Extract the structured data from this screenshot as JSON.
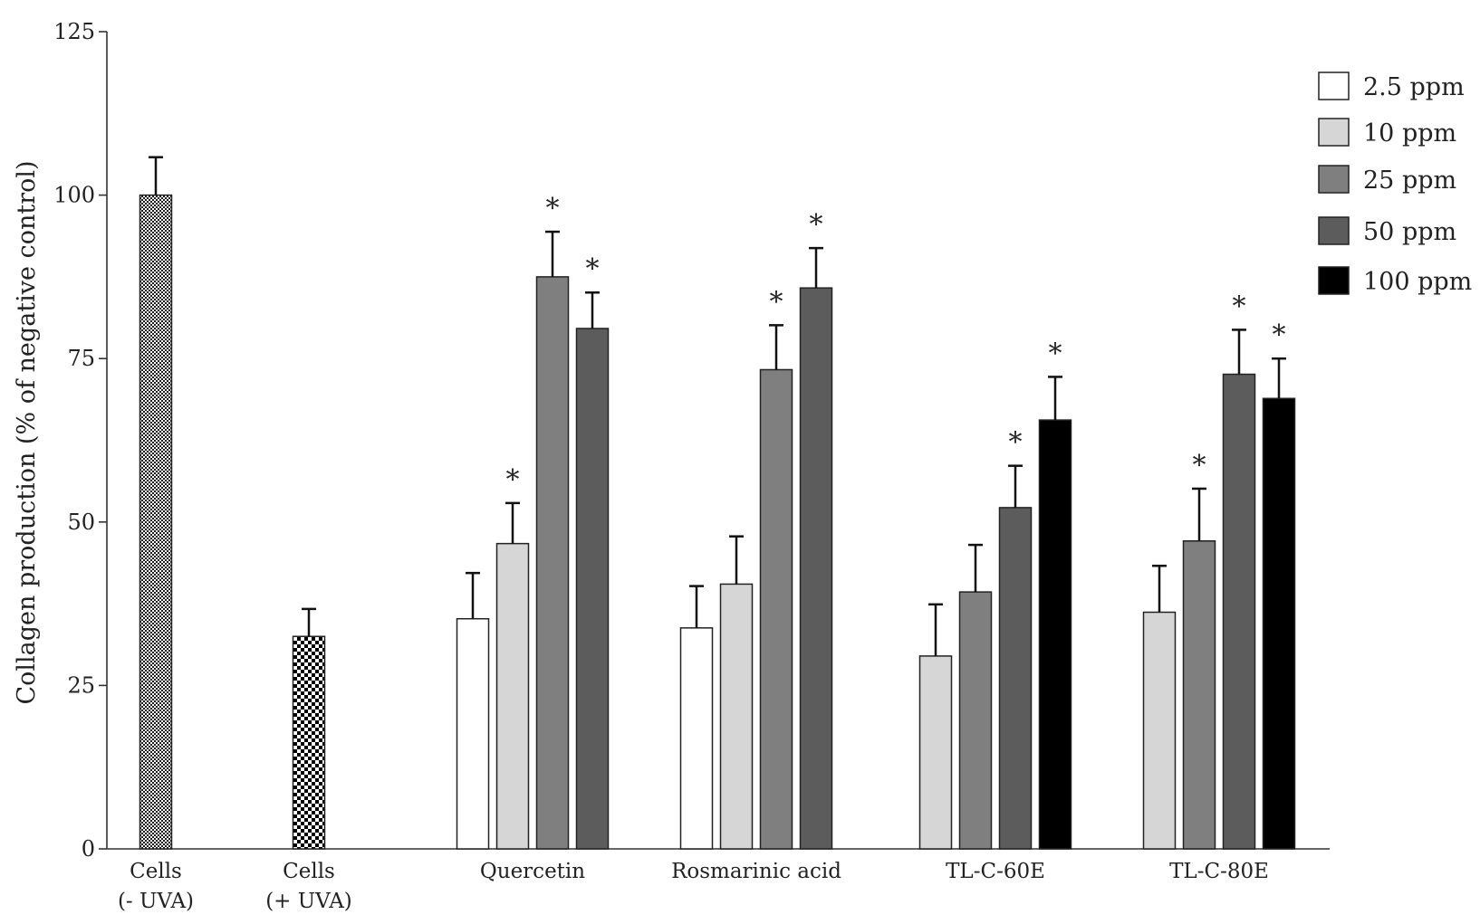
{
  "chart_data": {
    "type": "bar",
    "title": "",
    "xlabel": "",
    "ylabel": "Collagen production (% of negative control)",
    "ylim": [
      0,
      125
    ],
    "yticks": [
      0,
      25,
      50,
      75,
      100,
      125
    ],
    "grid": false,
    "legend_position": "top-right",
    "legend": [
      {
        "label": "2.5 ppm",
        "color": "#ffffff"
      },
      {
        "label": "10 ppm",
        "color": "#d6d6d6"
      },
      {
        "label": "25 ppm",
        "color": "#7f7f7f"
      },
      {
        "label": "50 ppm",
        "color": "#5c5c5c"
      },
      {
        "label": "100 ppm",
        "color": "#000000"
      }
    ],
    "groups": [
      {
        "label_lines": [
          "Cells",
          "(- UVA)"
        ],
        "bars": [
          {
            "series": "control",
            "pattern": "fine-check",
            "value": 100,
            "error": 5.8,
            "significant": false
          }
        ]
      },
      {
        "label_lines": [
          "Cells",
          "(+ UVA)"
        ],
        "bars": [
          {
            "series": "control",
            "pattern": "coarse-check",
            "value": 32.5,
            "error": 4.2,
            "significant": false
          }
        ]
      },
      {
        "label_lines": [
          "Quercetin"
        ],
        "bars": [
          {
            "series": "2.5 ppm",
            "value": 35.2,
            "error": 7.0,
            "significant": false
          },
          {
            "series": "10 ppm",
            "value": 46.7,
            "error": 6.2,
            "significant": true
          },
          {
            "series": "25 ppm",
            "value": 87.5,
            "error": 6.9,
            "significant": true
          },
          {
            "series": "50 ppm",
            "value": 79.6,
            "error": 5.5,
            "significant": true
          }
        ]
      },
      {
        "label_lines": [
          "Rosmarinic acid"
        ],
        "bars": [
          {
            "series": "2.5 ppm",
            "value": 33.8,
            "error": 6.4,
            "significant": false
          },
          {
            "series": "10 ppm",
            "value": 40.5,
            "error": 7.3,
            "significant": false
          },
          {
            "series": "25 ppm",
            "value": 73.3,
            "error": 6.8,
            "significant": true
          },
          {
            "series": "50 ppm",
            "value": 85.8,
            "error": 6.1,
            "significant": true
          }
        ]
      },
      {
        "label_lines": [
          "TL-C-60E"
        ],
        "bars": [
          {
            "series": "10 ppm",
            "value": 29.5,
            "error": 7.9,
            "significant": false
          },
          {
            "series": "25 ppm",
            "value": 39.3,
            "error": 7.2,
            "significant": false
          },
          {
            "series": "50 ppm",
            "value": 52.2,
            "error": 6.4,
            "significant": true
          },
          {
            "series": "100 ppm",
            "value": 65.6,
            "error": 6.6,
            "significant": true
          }
        ]
      },
      {
        "label_lines": [
          "TL-C-80E"
        ],
        "bars": [
          {
            "series": "10 ppm",
            "value": 36.2,
            "error": 7.1,
            "significant": false
          },
          {
            "series": "25 ppm",
            "value": 47.1,
            "error": 8.0,
            "significant": true
          },
          {
            "series": "50 ppm",
            "value": 72.6,
            "error": 6.8,
            "significant": true
          },
          {
            "series": "100 ppm",
            "value": 68.9,
            "error": 6.1,
            "significant": true
          }
        ]
      }
    ],
    "significance_marker": "*"
  }
}
